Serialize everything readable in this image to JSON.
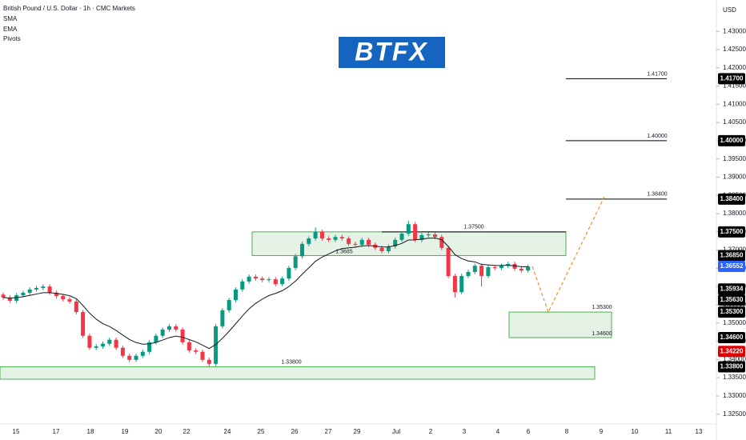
{
  "chart_data": {
    "type": "candlestick",
    "title": "British Pound / U.S. Dollar · 1h · CMC Markets",
    "indicators": [
      "SMA",
      "EMA",
      "Pivots"
    ],
    "logo": "BTFX",
    "currency": "USD",
    "up_color": "#089981",
    "down_color": "#f23645",
    "ylim": [
      1.3223,
      1.4386
    ],
    "yticks": [
      {
        "value": 1.43,
        "label": "1.43000"
      },
      {
        "value": 1.425,
        "label": "1.42500"
      },
      {
        "value": 1.42,
        "label": "1.42000"
      },
      {
        "value": 1.415,
        "label": "1.41500"
      },
      {
        "value": 1.41,
        "label": "1.41000"
      },
      {
        "value": 1.405,
        "label": "1.40500"
      },
      {
        "value": 1.4,
        "label": "1.40000"
      },
      {
        "value": 1.395,
        "label": "1.39500"
      },
      {
        "value": 1.39,
        "label": "1.39000"
      },
      {
        "value": 1.385,
        "label": "1.38500"
      },
      {
        "value": 1.38,
        "label": "1.38000"
      },
      {
        "value": 1.375,
        "label": "1.37500"
      },
      {
        "value": 1.37,
        "label": "1.37000"
      },
      {
        "value": 1.365,
        "label": "1.36500"
      },
      {
        "value": 1.36,
        "label": "1.36000"
      },
      {
        "value": 1.355,
        "label": "1.35500"
      },
      {
        "value": 1.35,
        "label": "1.35000"
      },
      {
        "value": 1.345,
        "label": "1.34500"
      },
      {
        "value": 1.34,
        "label": "1.34000"
      },
      {
        "value": 1.335,
        "label": "1.33500"
      },
      {
        "value": 1.33,
        "label": "1.33000"
      },
      {
        "value": 1.325,
        "label": "1.32500"
      }
    ],
    "categories": [
      "15",
      "17",
      "18",
      "19",
      "20",
      "22",
      "24",
      "25",
      "26",
      "27",
      "29",
      "Jul",
      "2",
      "3",
      "4",
      "6",
      "8",
      "9",
      "10",
      "11",
      "13"
    ],
    "open": [
      1.3578,
      1.357,
      1.3561,
      1.3576,
      1.3583,
      1.3592,
      1.3596,
      1.36,
      1.3583,
      1.3574,
      1.3565,
      1.3559,
      1.353,
      1.3465,
      1.3432,
      1.3436,
      1.3443,
      1.3454,
      1.3432,
      1.341,
      1.3399,
      1.341,
      1.3421,
      1.3447,
      1.3465,
      1.3482,
      1.3491,
      1.3482,
      1.3447,
      1.3425,
      1.3421,
      1.3399,
      1.3388,
      1.3491,
      1.3535,
      1.3563,
      1.3592,
      1.3614,
      1.3627,
      1.3622,
      1.3618,
      1.362,
      1.3607,
      1.3622,
      1.3651,
      1.3683,
      1.3717,
      1.3732,
      1.375,
      1.3732,
      1.3728,
      1.3736,
      1.3732,
      1.3717,
      1.3715,
      1.3728,
      1.3715,
      1.3706,
      1.3697,
      1.371,
      1.3728,
      1.3745,
      1.3771,
      1.3728,
      1.3741,
      1.3743,
      1.3736,
      1.3706,
      1.3629,
      1.3585,
      1.3629,
      1.364,
      1.3657,
      1.3629,
      1.3653,
      1.3651,
      1.3657,
      1.3662,
      1.3649,
      1.3644
    ],
    "high": [
      1.3584,
      1.3576,
      1.3582,
      1.3589,
      1.3598,
      1.3602,
      1.3606,
      1.3606,
      1.3589,
      1.358,
      1.3571,
      1.3565,
      1.3536,
      1.3471,
      1.3442,
      1.3449,
      1.346,
      1.346,
      1.3438,
      1.3416,
      1.3416,
      1.3427,
      1.3453,
      1.3471,
      1.3488,
      1.3497,
      1.3497,
      1.3488,
      1.3453,
      1.3431,
      1.3427,
      1.3405,
      1.3497,
      1.3541,
      1.3569,
      1.3598,
      1.362,
      1.3633,
      1.3633,
      1.3628,
      1.3626,
      1.3626,
      1.3628,
      1.3657,
      1.3689,
      1.3723,
      1.3738,
      1.3762,
      1.3756,
      1.3738,
      1.3742,
      1.3742,
      1.3738,
      1.3723,
      1.3734,
      1.3734,
      1.3721,
      1.3712,
      1.3716,
      1.3734,
      1.3751,
      1.3781,
      1.3777,
      1.3747,
      1.3749,
      1.3749,
      1.3742,
      1.3712,
      1.3635,
      1.3635,
      1.3646,
      1.3663,
      1.3663,
      1.3659,
      1.3659,
      1.3663,
      1.3668,
      1.3668,
      1.3655,
      1.366
    ],
    "low": [
      1.3564,
      1.3555,
      1.3555,
      1.357,
      1.3577,
      1.3586,
      1.359,
      1.3577,
      1.3568,
      1.3559,
      1.3553,
      1.3524,
      1.3459,
      1.3426,
      1.3426,
      1.343,
      1.3437,
      1.3426,
      1.3404,
      1.3393,
      1.3393,
      1.3404,
      1.3415,
      1.3441,
      1.3459,
      1.3476,
      1.3476,
      1.3441,
      1.3419,
      1.3415,
      1.3393,
      1.338,
      1.3382,
      1.3485,
      1.3529,
      1.3557,
      1.3586,
      1.3608,
      1.3616,
      1.3612,
      1.3612,
      1.3601,
      1.3601,
      1.3616,
      1.3645,
      1.3677,
      1.3711,
      1.3726,
      1.3726,
      1.3722,
      1.3722,
      1.3726,
      1.3711,
      1.3709,
      1.3709,
      1.3709,
      1.37,
      1.3691,
      1.3691,
      1.3704,
      1.3722,
      1.3739,
      1.3722,
      1.3722,
      1.3735,
      1.373,
      1.37,
      1.3623,
      1.357,
      1.3579,
      1.3623,
      1.3634,
      1.36,
      1.3623,
      1.3645,
      1.3645,
      1.3651,
      1.3643,
      1.3638,
      1.3638
    ],
    "close": [
      1.357,
      1.3561,
      1.3576,
      1.3583,
      1.3592,
      1.3596,
      1.36,
      1.3583,
      1.3574,
      1.3565,
      1.3559,
      1.353,
      1.3465,
      1.3432,
      1.3436,
      1.3443,
      1.3454,
      1.3432,
      1.341,
      1.3399,
      1.341,
      1.3421,
      1.3447,
      1.3465,
      1.3482,
      1.3491,
      1.3482,
      1.3447,
      1.3425,
      1.3421,
      1.3399,
      1.3388,
      1.3491,
      1.3535,
      1.3563,
      1.3592,
      1.3614,
      1.3627,
      1.3622,
      1.3618,
      1.362,
      1.3607,
      1.3622,
      1.3651,
      1.3683,
      1.3717,
      1.3732,
      1.375,
      1.3732,
      1.3728,
      1.3736,
      1.3732,
      1.3717,
      1.3715,
      1.3728,
      1.3715,
      1.3706,
      1.3697,
      1.371,
      1.3728,
      1.3745,
      1.3771,
      1.3728,
      1.3741,
      1.3743,
      1.3736,
      1.3706,
      1.3629,
      1.3585,
      1.3629,
      1.364,
      1.3657,
      1.3629,
      1.3653,
      1.3651,
      1.3657,
      1.3662,
      1.3649,
      1.3644,
      1.36552
    ],
    "levels": [
      {
        "value": 1.417,
        "label": "1.41700"
      },
      {
        "value": 1.4,
        "label": "1.40000"
      },
      {
        "value": 1.384,
        "label": "1.38400"
      },
      {
        "value": 1.375,
        "label": "1.37500"
      }
    ],
    "zones": [
      {
        "high": 1.375,
        "low": 1.3685,
        "low_label": "1.3685"
      },
      {
        "high": 1.353,
        "low": 1.346,
        "high_label": "1.35300",
        "low_label": "1.34600"
      },
      {
        "high": 1.338,
        "low": 1.3346,
        "high_label": "1.33800"
      }
    ],
    "projection": [
      1.36552,
      1.353,
      1.3846
    ],
    "projection_color": "#f57c00",
    "zone_color": "#4caf50",
    "price_tags": [
      {
        "value": 1.417,
        "label": "1.41700",
        "color": "#000000"
      },
      {
        "value": 1.4,
        "label": "1.40000",
        "color": "#000000"
      },
      {
        "value": 1.384,
        "label": "1.38400",
        "color": "#000000"
      },
      {
        "value": 1.375,
        "label": "1.37500",
        "color": "#000000"
      },
      {
        "value": 1.3685,
        "label": "1.36850",
        "color": "#000000"
      },
      {
        "value": 1.36552,
        "label": "1.36552",
        "color": "#2962ff"
      },
      {
        "value": 1.35934,
        "label": "1.35934",
        "color": "#000000"
      },
      {
        "value": 1.3563,
        "label": "1.35630",
        "color": "#000000"
      },
      {
        "value": 1.353,
        "label": "1.35300",
        "color": "#000000"
      },
      {
        "value": 1.346,
        "label": "1.34600",
        "color": "#000000"
      },
      {
        "value": 1.3422,
        "label": "1.34220",
        "color": "#e00000"
      },
      {
        "value": 1.338,
        "label": "1.33800",
        "color": "#000000"
      }
    ]
  }
}
